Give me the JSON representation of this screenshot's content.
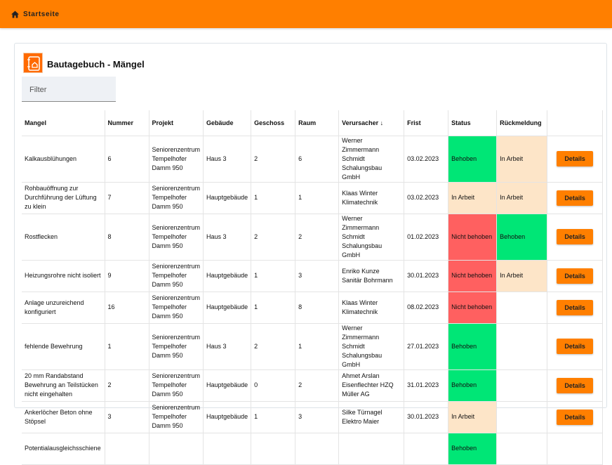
{
  "topbar": {
    "home_label": "Startseite"
  },
  "page": {
    "title": "Bautagebuch - Mängel",
    "filter_placeholder": "Filter"
  },
  "colors": {
    "accent": "#ff7f00",
    "behoben": "#00e676",
    "nicht_behoben": "#ff6060",
    "in_arbeit": "#fde5c8"
  },
  "table": {
    "columns": [
      "Mangel",
      "Nummer",
      "Projekt",
      "Gebäude",
      "Geschoss",
      "Raum",
      "Verursacher ↓",
      "Frist",
      "Status",
      "Rückmeldung",
      ""
    ],
    "details_label": "Details",
    "rows": [
      [
        "Kalkausblühungen",
        "6",
        "Seniorenzentrum Tempelhofer Damm 950",
        "Haus 3",
        "2",
        "6",
        "Werner Zimmermann Schmidt Schalungsbau GmbH",
        "03.02.2023",
        "Behoben",
        "In Arbeit"
      ],
      [
        "Rohbauöffnung zur Durchführung der Lüftung zu klein",
        "7",
        "Seniorenzentrum Tempelhofer Damm 950",
        "Hauptgebäude",
        "1",
        "1",
        "Klaas Winter Klimatechnik",
        "03.02.2023",
        "In Arbeit",
        "In Arbeit"
      ],
      [
        "Rostflecken",
        "8",
        "Seniorenzentrum Tempelhofer Damm 950",
        "Haus 3",
        "2",
        "2",
        "Werner Zimmermann Schmidt Schalungsbau GmbH",
        "01.02.2023",
        "Nicht behoben",
        "Behoben"
      ],
      [
        "Heizungsrohre nicht isoliert",
        "9",
        "Seniorenzentrum Tempelhofer Damm 950",
        "Hauptgebäude",
        "1",
        "3",
        "Enriko Kunze Sanitär Bohrmann",
        "30.01.2023",
        "Nicht behoben",
        "In Arbeit"
      ],
      [
        "Anlage unzureichend konfiguriert",
        "16",
        "Seniorenzentrum Tempelhofer Damm 950",
        "Hauptgebäude",
        "1",
        "8",
        "Klaas Winter Klimatechnik",
        "08.02.2023",
        "Nicht behoben",
        ""
      ],
      [
        "fehlende Bewehrung",
        "1",
        "Seniorenzentrum Tempelhofer Damm 950",
        "Haus 3",
        "2",
        "1",
        "Werner Zimmermann Schmidt Schalungsbau GmbH",
        "27.01.2023",
        "Behoben",
        ""
      ],
      [
        "20 mm Randabstand Bewehrung an Teilstücken nicht eingehalten",
        "2",
        "Seniorenzentrum Tempelhofer Damm 950",
        "Hauptgebäude",
        "0",
        "2",
        "Ahmet Arslan Eisenflechter HZQ Müller AG",
        "31.01.2023",
        "Behoben",
        ""
      ],
      [
        "Ankerlöcher Beton ohne Stöpsel",
        "3",
        "Seniorenzentrum Tempelhofer Damm 950",
        "Hauptgebäude",
        "1",
        "3",
        "Silke Türnagel Elektro Maier",
        "30.01.2023",
        "In Arbeit",
        ""
      ],
      [
        "Potentialausgleichsschiene",
        "",
        "",
        "",
        "",
        "",
        "",
        "",
        "Behoben",
        ""
      ]
    ]
  }
}
